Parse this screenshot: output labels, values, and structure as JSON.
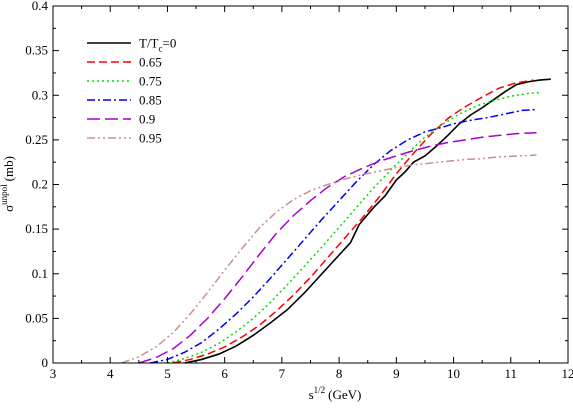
{
  "chart_data": {
    "type": "line",
    "xlabel": {
      "base": "s",
      "sup": "1/2",
      "unit": "(GeV)"
    },
    "ylabel": {
      "base": "σ",
      "sup": "unpol",
      "unit": "(mb)"
    },
    "xlim": [
      3,
      12
    ],
    "ylim": [
      0,
      0.4
    ],
    "x_ticks": [
      "3",
      "4",
      "5",
      "6",
      "7",
      "8",
      "9",
      "10",
      "11",
      "12"
    ],
    "y_ticks": [
      "0",
      "0.05",
      "0.1",
      "0.15",
      "0.2",
      "0.25",
      "0.3",
      "0.35",
      "0.4"
    ],
    "grid": false,
    "legend_position": "top-left",
    "legend_title": {
      "main": "T/T",
      "sub": "c",
      "suffix": "=0"
    },
    "series": [
      {
        "name": "T/Tc=0",
        "color": "#000000",
        "dash": "solid",
        "points": [
          [
            5.3,
            0
          ],
          [
            5.6,
            0.004
          ],
          [
            5.9,
            0.01
          ],
          [
            6.2,
            0.019
          ],
          [
            6.5,
            0.031
          ],
          [
            6.8,
            0.045
          ],
          [
            7.1,
            0.06
          ],
          [
            7.4,
            0.079
          ],
          [
            7.7,
            0.1
          ],
          [
            8.0,
            0.121
          ],
          [
            8.2,
            0.135
          ],
          [
            8.35,
            0.155
          ],
          [
            8.6,
            0.174
          ],
          [
            8.8,
            0.187
          ],
          [
            9.0,
            0.205
          ],
          [
            9.15,
            0.214
          ],
          [
            9.3,
            0.225
          ],
          [
            9.5,
            0.232
          ],
          [
            9.7,
            0.243
          ],
          [
            9.9,
            0.255
          ],
          [
            10.1,
            0.268
          ],
          [
            10.3,
            0.278
          ],
          [
            10.5,
            0.286
          ],
          [
            10.7,
            0.295
          ],
          [
            10.9,
            0.304
          ],
          [
            11.1,
            0.312
          ],
          [
            11.3,
            0.315
          ],
          [
            11.5,
            0.317
          ],
          [
            11.7,
            0.318
          ]
        ]
      },
      {
        "name": "0.65",
        "color": "#ff0000",
        "dash": "dashed",
        "points": [
          [
            5.1,
            0
          ],
          [
            5.4,
            0.004
          ],
          [
            5.7,
            0.01
          ],
          [
            6.0,
            0.018
          ],
          [
            6.3,
            0.029
          ],
          [
            6.6,
            0.042
          ],
          [
            6.9,
            0.058
          ],
          [
            7.2,
            0.076
          ],
          [
            7.5,
            0.096
          ],
          [
            7.8,
            0.118
          ],
          [
            8.1,
            0.14
          ],
          [
            8.4,
            0.162
          ],
          [
            8.7,
            0.186
          ],
          [
            9.0,
            0.212
          ],
          [
            9.3,
            0.235
          ],
          [
            9.6,
            0.256
          ],
          [
            9.9,
            0.274
          ],
          [
            10.2,
            0.287
          ],
          [
            10.5,
            0.298
          ],
          [
            10.8,
            0.308
          ],
          [
            11.1,
            0.314
          ],
          [
            11.4,
            0.317
          ]
        ]
      },
      {
        "name": "0.75",
        "color": "#00dd00",
        "dash": "dotted",
        "points": [
          [
            5.0,
            0
          ],
          [
            5.3,
            0.005
          ],
          [
            5.6,
            0.012
          ],
          [
            5.9,
            0.022
          ],
          [
            6.2,
            0.035
          ],
          [
            6.5,
            0.05
          ],
          [
            6.8,
            0.068
          ],
          [
            7.1,
            0.088
          ],
          [
            7.4,
            0.109
          ],
          [
            7.7,
            0.13
          ],
          [
            8.0,
            0.152
          ],
          [
            8.3,
            0.174
          ],
          [
            8.6,
            0.196
          ],
          [
            8.9,
            0.216
          ],
          [
            9.2,
            0.235
          ],
          [
            9.5,
            0.253
          ],
          [
            9.8,
            0.267
          ],
          [
            10.1,
            0.279
          ],
          [
            10.4,
            0.288
          ],
          [
            10.7,
            0.294
          ],
          [
            11.0,
            0.299
          ],
          [
            11.3,
            0.302
          ],
          [
            11.5,
            0.303
          ]
        ]
      },
      {
        "name": "0.85",
        "color": "#0000ee",
        "dash": "dashdot",
        "points": [
          [
            4.7,
            0
          ],
          [
            5.0,
            0.004
          ],
          [
            5.3,
            0.012
          ],
          [
            5.6,
            0.023
          ],
          [
            5.9,
            0.038
          ],
          [
            6.2,
            0.055
          ],
          [
            6.5,
            0.074
          ],
          [
            6.8,
            0.095
          ],
          [
            7.1,
            0.117
          ],
          [
            7.4,
            0.139
          ],
          [
            7.7,
            0.161
          ],
          [
            8.0,
            0.182
          ],
          [
            8.3,
            0.203
          ],
          [
            8.6,
            0.222
          ],
          [
            8.9,
            0.238
          ],
          [
            9.2,
            0.25
          ],
          [
            9.5,
            0.259
          ],
          [
            9.8,
            0.264
          ],
          [
            10.0,
            0.268
          ],
          [
            10.3,
            0.272
          ],
          [
            10.6,
            0.275
          ],
          [
            10.9,
            0.279
          ],
          [
            11.2,
            0.283
          ],
          [
            11.45,
            0.284
          ]
        ]
      },
      {
        "name": "0.9",
        "color": "#aa00cc",
        "dash": "longdash",
        "points": [
          [
            4.5,
            0
          ],
          [
            4.8,
            0.006
          ],
          [
            5.1,
            0.016
          ],
          [
            5.4,
            0.031
          ],
          [
            5.7,
            0.05
          ],
          [
            6.0,
            0.072
          ],
          [
            6.3,
            0.096
          ],
          [
            6.6,
            0.121
          ],
          [
            6.9,
            0.145
          ],
          [
            7.2,
            0.165
          ],
          [
            7.5,
            0.182
          ],
          [
            7.8,
            0.197
          ],
          [
            8.1,
            0.209
          ],
          [
            8.4,
            0.218
          ],
          [
            8.7,
            0.226
          ],
          [
            9.0,
            0.232
          ],
          [
            9.3,
            0.238
          ],
          [
            9.6,
            0.243
          ],
          [
            9.9,
            0.247
          ],
          [
            10.2,
            0.25
          ],
          [
            10.5,
            0.253
          ],
          [
            10.8,
            0.255
          ],
          [
            11.1,
            0.257
          ],
          [
            11.45,
            0.258
          ]
        ]
      },
      {
        "name": "0.95",
        "color": "#c89090",
        "dash": "dashdotdot",
        "points": [
          [
            4.2,
            0
          ],
          [
            4.5,
            0.007
          ],
          [
            4.8,
            0.018
          ],
          [
            5.1,
            0.034
          ],
          [
            5.4,
            0.055
          ],
          [
            5.7,
            0.079
          ],
          [
            6.0,
            0.104
          ],
          [
            6.3,
            0.128
          ],
          [
            6.6,
            0.151
          ],
          [
            6.9,
            0.169
          ],
          [
            7.2,
            0.183
          ],
          [
            7.5,
            0.193
          ],
          [
            7.8,
            0.2
          ],
          [
            8.1,
            0.206
          ],
          [
            8.4,
            0.211
          ],
          [
            8.7,
            0.215
          ],
          [
            9.0,
            0.219
          ],
          [
            9.3,
            0.222
          ],
          [
            9.6,
            0.224
          ],
          [
            9.9,
            0.226
          ],
          [
            10.2,
            0.228
          ],
          [
            10.5,
            0.229
          ],
          [
            10.8,
            0.231
          ],
          [
            11.1,
            0.232
          ],
          [
            11.45,
            0.233
          ]
        ]
      }
    ]
  }
}
